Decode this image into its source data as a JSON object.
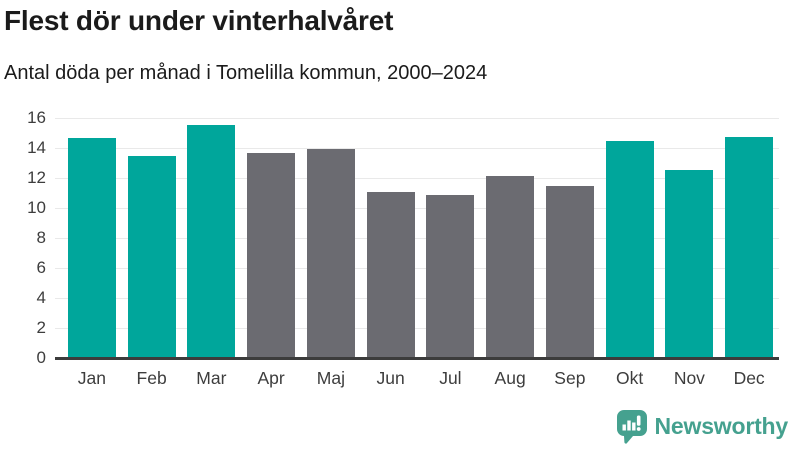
{
  "header": {
    "title": "Flest dör under vinterhalvåret",
    "subtitle": "Antal döda per månad i Tomelilla kommun, 2000–2024"
  },
  "chart_data": {
    "type": "bar",
    "title": "Flest dör under vinterhalvåret",
    "subtitle": "Antal döda per månad i Tomelilla kommun, 2000–2024",
    "categories": [
      "Jan",
      "Feb",
      "Mar",
      "Apr",
      "Maj",
      "Jun",
      "Jul",
      "Aug",
      "Sep",
      "Okt",
      "Nov",
      "Dec"
    ],
    "values": [
      14.6,
      13.4,
      15.5,
      13.6,
      13.9,
      11.0,
      10.8,
      12.1,
      11.4,
      14.4,
      12.5,
      14.7
    ],
    "bar_color_keys": [
      "teal",
      "teal",
      "teal",
      "gray",
      "gray",
      "gray",
      "gray",
      "gray",
      "gray",
      "teal",
      "teal",
      "teal"
    ],
    "xlabel": "",
    "ylabel": "",
    "ylim": [
      0,
      16
    ],
    "yticks": [
      0,
      2,
      4,
      6,
      8,
      10,
      12,
      14,
      16
    ],
    "grid": true,
    "legend_position": "none"
  },
  "colors": {
    "teal": "#00a69b",
    "gray": "#6b6b71",
    "gridline": "#e9e9e9",
    "axis_line": "#3c3c3c",
    "tick_text": "#3d3d3d",
    "title_text": "#1b1b1b",
    "logo_teal": "#45a18f"
  },
  "footer": {
    "logo_label": "Newsworthy",
    "logo_icon": "bar-chart-speech-bubble-icon"
  }
}
